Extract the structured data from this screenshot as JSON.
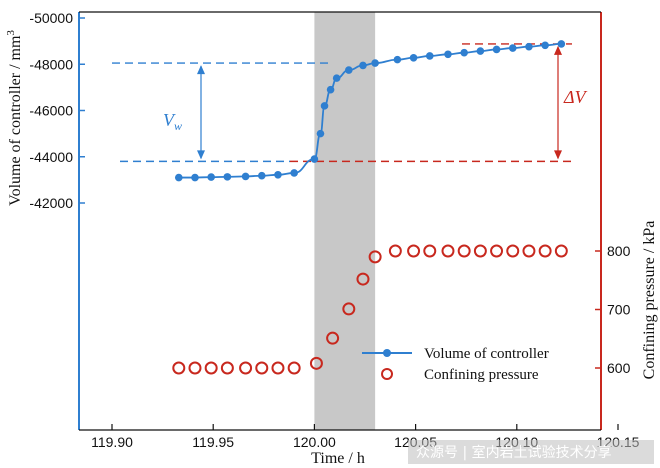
{
  "chart_data": {
    "type": "line",
    "title": "",
    "xlabel": "Time / h",
    "ylabel_left": "Volume of controller / mm",
    "ylabel_left_superscript": "3",
    "ylabel_right": "Confining pressure / kPa",
    "xlim": [
      119.9,
      120.15
    ],
    "x_ticks": [
      "119.90",
      "119.95",
      "120.00",
      "120.05",
      "120.10",
      "120.15"
    ],
    "y_left_lim": [
      -50000,
      -42000
    ],
    "y_left_ticks": [
      "-50000",
      "-48000",
      "-46000",
      "-44000",
      "-42000"
    ],
    "y_left_inverted": true,
    "y_right_ticks": [
      "600",
      "700",
      "800"
    ],
    "legend_position": "bottom-right",
    "shaded_region": {
      "x_start": 120.0,
      "x_end": 120.03
    },
    "series": [
      {
        "name": "Volume of controller",
        "axis": "left",
        "color": "#2f7fd0",
        "style": "line-with-markers",
        "x": [
          119.933,
          119.941,
          119.949,
          119.957,
          119.966,
          119.974,
          119.982,
          119.99,
          120.0,
          120.003,
          120.005,
          120.008,
          120.011,
          120.017,
          120.024,
          120.03,
          120.041,
          120.049,
          120.057,
          120.066,
          120.074,
          120.082,
          120.09,
          120.098,
          120.106,
          120.114,
          120.122
        ],
        "values": [
          -43100,
          -43100,
          -43120,
          -43130,
          -43150,
          -43180,
          -43220,
          -43300,
          -43900,
          -45000,
          -46200,
          -46900,
          -47400,
          -47750,
          -47950,
          -48050,
          -48200,
          -48280,
          -48360,
          -48430,
          -48500,
          -48570,
          -48640,
          -48700,
          -48760,
          -48820,
          -48880
        ]
      },
      {
        "name": "Confining pressure",
        "axis": "right",
        "color": "#c8281e",
        "style": "hollow-circles",
        "x": [
          119.933,
          119.941,
          119.949,
          119.957,
          119.966,
          119.974,
          119.982,
          119.99,
          120.001,
          120.009,
          120.017,
          120.024,
          120.03,
          120.04,
          120.049,
          120.057,
          120.066,
          120.074,
          120.082,
          120.09,
          120.098,
          120.106,
          120.114,
          120.122
        ],
        "values": [
          600,
          600,
          600,
          600,
          600,
          600,
          600,
          600,
          608,
          651,
          701,
          752,
          790,
          800,
          800,
          800,
          800,
          800,
          800,
          800,
          800,
          800,
          800,
          800
        ]
      }
    ],
    "annotations": {
      "vw_label": "V",
      "vw_subscript": "w",
      "dv_label": "ΔV"
    },
    "colors": {
      "left_axis": "#2f7fd0",
      "right_axis": "#c8281e",
      "shade": "#c8c8c8"
    }
  },
  "watermark": "众源号 | 室内岩土试验技术分享"
}
